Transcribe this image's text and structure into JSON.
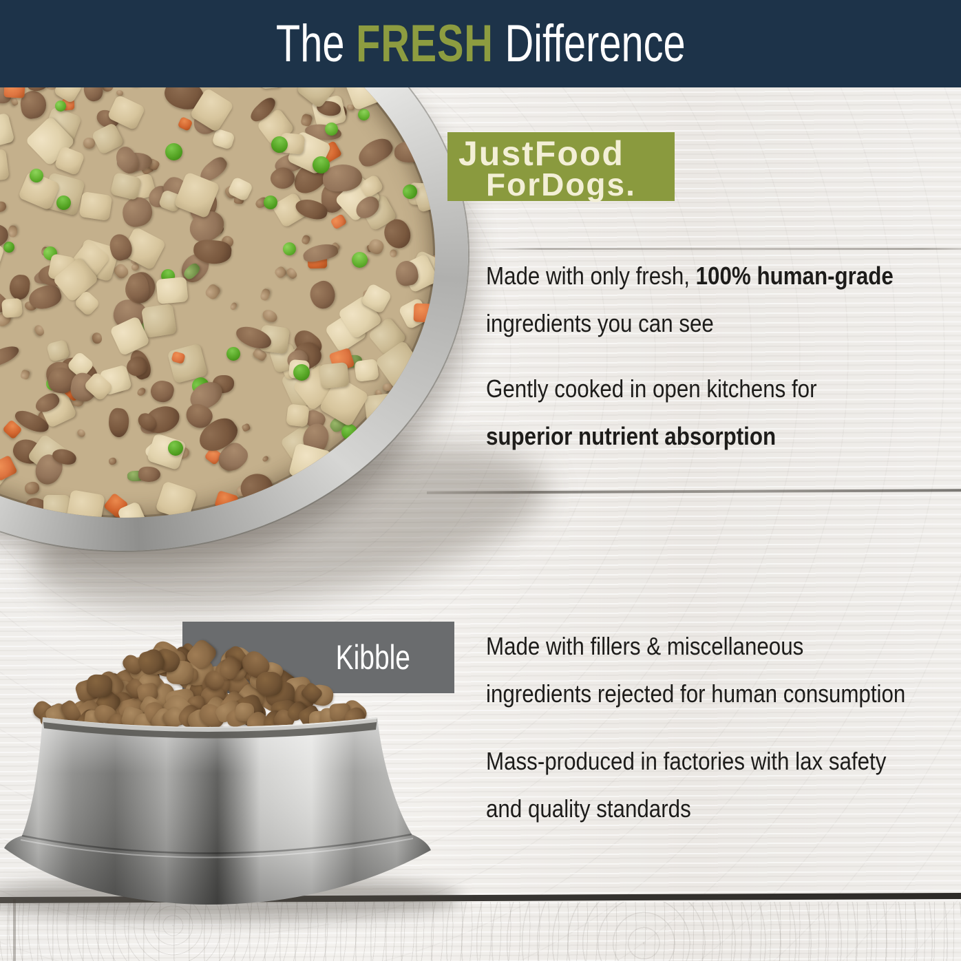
{
  "header": {
    "prefix": "The",
    "highlight": "FRESH",
    "suffix": "Difference",
    "bg_color": "#1d3349",
    "highlight_color": "#8d9c40",
    "text_color": "#ffffff"
  },
  "brand_badge": {
    "line1": "JustFood",
    "line2": "ForDogs.",
    "bg_color": "#8a9a3e",
    "text_color": "#f3efd6"
  },
  "fresh_section": {
    "point1": {
      "normal": "Made with only fresh, ",
      "bold": "100% human-grade",
      "line2": "ingredients you can see"
    },
    "point2": {
      "line1": "Gently cooked in open kitchens for",
      "bold_line2": "superior nutrient absorption"
    }
  },
  "kibble_section": {
    "label": "Kibble",
    "label_bg": "#6a6c6e",
    "label_color": "#ffffff",
    "point1": {
      "line1": "Made with fillers & miscellaneous",
      "line2": "ingredients rejected for human consumption"
    },
    "point2": {
      "line1": "Mass-produced in factories with lax safety",
      "line2": "and quality standards"
    }
  },
  "body_text_color": "#1d1c1a",
  "wood_color": "#efedea",
  "photo_palette": {
    "bowl_base": "#c4b08c",
    "potato": [
      [
        "#f0e3c4",
        "#e1d2ac",
        "#bfae87"
      ],
      [
        "#e7d8b5",
        "#d7c59d",
        "#b5a27b"
      ],
      [
        "#ddd0ae",
        "#ccbb94",
        "#a89670"
      ]
    ],
    "beef": [
      [
        "#9d7c5e",
        "#85644a",
        "#5f4430"
      ],
      [
        "#8f6e52",
        "#79583e",
        "#553a28"
      ],
      [
        "#a98a6c",
        "#93745a",
        "#6d5138"
      ]
    ],
    "pea": [
      [
        "#8ed45b",
        "#63b12f",
        "#3f8c17"
      ],
      [
        "#7cc94b",
        "#55a424",
        "#368010"
      ]
    ],
    "carrot": [
      [
        "#f09055",
        "#dd7440",
        "#b1521f"
      ],
      [
        "#eb8a4e",
        "#d3662f",
        "#a84c1a"
      ]
    ],
    "green": [
      [
        "#9ab86a",
        "#74934a",
        "#4f6e2c"
      ]
    ],
    "crumb": [
      [
        "#c3a887",
        "#a58866",
        "#7d6146"
      ],
      [
        "#b29674",
        "#937253",
        "#6b4f36"
      ]
    ],
    "kibble": [
      [
        "#a07d55",
        "#8a6a46",
        "#60452a"
      ],
      [
        "#93714b",
        "#7b5c3b",
        "#543a22"
      ],
      [
        "#ab8a61",
        "#94744e",
        "#6a4e30"
      ],
      [
        "#86653f",
        "#6f5234",
        "#4a351e"
      ]
    ]
  }
}
